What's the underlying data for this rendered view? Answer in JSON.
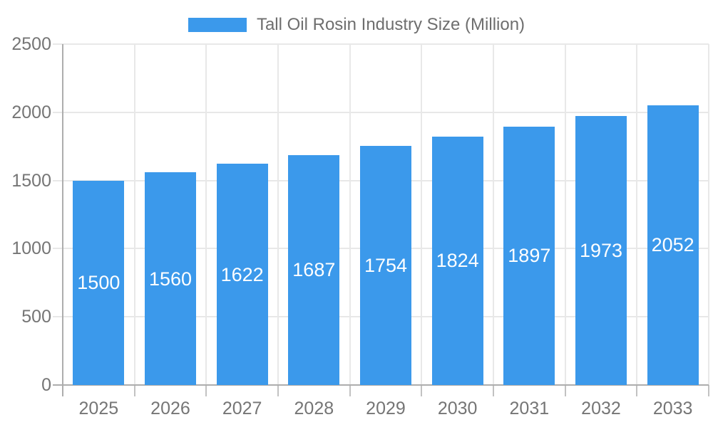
{
  "legend": {
    "label": "Tall Oil Rosin Industry Size (Million)"
  },
  "colors": {
    "bar": "#3B99EB",
    "bar_label_text": "#FFFFFF",
    "grid": "#E8E8E8",
    "axis_line": "#ADADAD",
    "x_tick": "#C2C2C2",
    "axis_label_text": "#757575",
    "legend_text": "#6E6E6E",
    "background": "#FFFFFF"
  },
  "chart_data": {
    "type": "bar",
    "title": "Tall Oil Rosin Industry Size (Million)",
    "categories": [
      "2025",
      "2026",
      "2027",
      "2028",
      "2029",
      "2030",
      "2031",
      "2032",
      "2033"
    ],
    "series": [
      {
        "name": "Tall Oil Rosin Industry Size (Million)",
        "values": [
          1500,
          1560,
          1622,
          1687,
          1754,
          1824,
          1897,
          1973,
          2052
        ]
      }
    ],
    "xlabel": "",
    "ylabel": "",
    "ylim": [
      0,
      2500
    ],
    "yticks": [
      0,
      500,
      1000,
      1500,
      2000,
      2500
    ],
    "grid": true,
    "legend_position": "top",
    "value_labels": "inside-center"
  }
}
